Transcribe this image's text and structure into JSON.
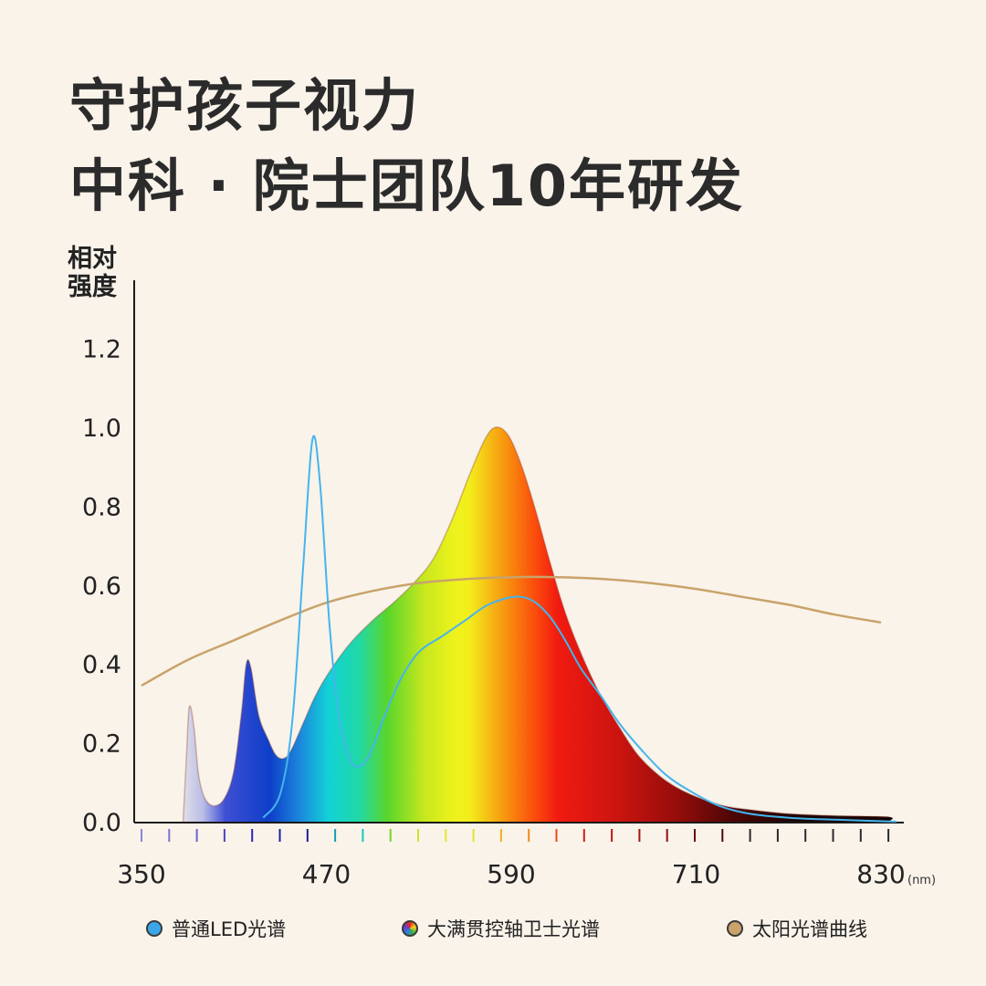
{
  "title": {
    "line1": "守护孩子视力",
    "line2": "中科 · 院士团队10年研发"
  },
  "chart_data": {
    "type": "area",
    "ylabel": "相对强度",
    "xunit": "(nm)",
    "xlim": [
      350,
      830
    ],
    "ylim": [
      0,
      1.3
    ],
    "x_ticks": [
      350,
      470,
      590,
      710,
      830
    ],
    "y_ticks": [
      "0.0",
      "0.2",
      "0.4",
      "0.6",
      "0.8",
      "1.0",
      "1.2"
    ],
    "legend_position": "bottom",
    "series": [
      {
        "name": "普通LED光谱",
        "color": "#45b4ee",
        "style": "line",
        "points": [
          [
            429,
            0.01
          ],
          [
            440,
            0.07
          ],
          [
            448,
            0.26
          ],
          [
            455,
            0.65
          ],
          [
            461,
            0.97
          ],
          [
            466,
            0.85
          ],
          [
            472,
            0.5
          ],
          [
            478,
            0.27
          ],
          [
            485,
            0.16
          ],
          [
            491,
            0.14
          ],
          [
            498,
            0.17
          ],
          [
            508,
            0.27
          ],
          [
            518,
            0.36
          ],
          [
            530,
            0.43
          ],
          [
            545,
            0.47
          ],
          [
            560,
            0.51
          ],
          [
            575,
            0.55
          ],
          [
            592,
            0.57
          ],
          [
            604,
            0.56
          ],
          [
            615,
            0.52
          ],
          [
            625,
            0.46
          ],
          [
            635,
            0.39
          ],
          [
            648,
            0.32
          ],
          [
            660,
            0.25
          ],
          [
            675,
            0.18
          ],
          [
            690,
            0.12
          ],
          [
            705,
            0.08
          ],
          [
            725,
            0.04
          ],
          [
            745,
            0.02
          ],
          [
            770,
            0.01
          ],
          [
            800,
            0.005
          ],
          [
            840,
            0.0
          ]
        ]
      },
      {
        "name": "大满贯控轴卫士光谱",
        "color": "spectrum",
        "style": "area",
        "points": [
          [
            377,
            0.0
          ],
          [
            379,
            0.15
          ],
          [
            381,
            0.29
          ],
          [
            384,
            0.24
          ],
          [
            387,
            0.12
          ],
          [
            391,
            0.06
          ],
          [
            397,
            0.04
          ],
          [
            404,
            0.06
          ],
          [
            410,
            0.13
          ],
          [
            415,
            0.28
          ],
          [
            418,
            0.4
          ],
          [
            421,
            0.39
          ],
          [
            426,
            0.27
          ],
          [
            432,
            0.21
          ],
          [
            437,
            0.17
          ],
          [
            442,
            0.16
          ],
          [
            447,
            0.18
          ],
          [
            455,
            0.25
          ],
          [
            463,
            0.32
          ],
          [
            472,
            0.38
          ],
          [
            485,
            0.45
          ],
          [
            500,
            0.51
          ],
          [
            515,
            0.56
          ],
          [
            528,
            0.61
          ],
          [
            540,
            0.67
          ],
          [
            552,
            0.77
          ],
          [
            563,
            0.88
          ],
          [
            573,
            0.97
          ],
          [
            580,
            1.0
          ],
          [
            588,
            0.98
          ],
          [
            596,
            0.91
          ],
          [
            605,
            0.8
          ],
          [
            615,
            0.66
          ],
          [
            625,
            0.53
          ],
          [
            636,
            0.42
          ],
          [
            648,
            0.32
          ],
          [
            660,
            0.24
          ],
          [
            672,
            0.17
          ],
          [
            685,
            0.12
          ],
          [
            698,
            0.085
          ],
          [
            712,
            0.06
          ],
          [
            728,
            0.04
          ],
          [
            745,
            0.03
          ],
          [
            770,
            0.02
          ],
          [
            800,
            0.015
          ],
          [
            835,
            0.012
          ],
          [
            835,
            0.0
          ]
        ]
      },
      {
        "name": "太阳光谱曲线",
        "color": "#c9a36a",
        "style": "line",
        "points": [
          [
            350,
            0.345
          ],
          [
            380,
            0.41
          ],
          [
            410,
            0.46
          ],
          [
            440,
            0.51
          ],
          [
            470,
            0.555
          ],
          [
            500,
            0.585
          ],
          [
            530,
            0.605
          ],
          [
            560,
            0.615
          ],
          [
            590,
            0.62
          ],
          [
            620,
            0.62
          ],
          [
            650,
            0.615
          ],
          [
            680,
            0.605
          ],
          [
            710,
            0.59
          ],
          [
            740,
            0.57
          ],
          [
            770,
            0.55
          ],
          [
            800,
            0.525
          ],
          [
            830,
            0.505
          ]
        ]
      }
    ]
  },
  "legend": [
    {
      "label": "普通LED光谱",
      "icon": "blue-circle-icon"
    },
    {
      "label": "大满贯控轴卫士光谱",
      "icon": "spectrum-circle-icon"
    },
    {
      "label": "太阳光谱曲线",
      "icon": "gold-circle-icon"
    }
  ]
}
